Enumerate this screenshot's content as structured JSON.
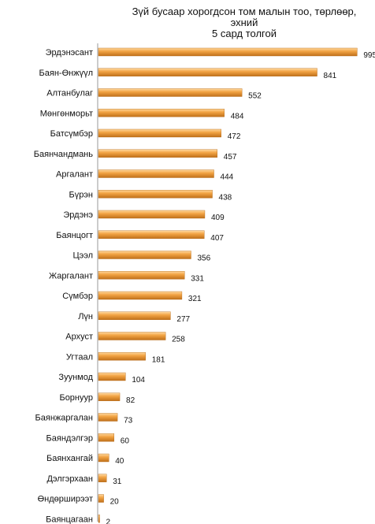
{
  "chart_data": {
    "type": "bar",
    "orientation": "horizontal",
    "title_lines": [
      "Зүй бусаар хорогдсон том малын тоо, төрлөөр, эхний",
      "5 сард толгой"
    ],
    "categories": [
      "Эрдэнэсант",
      "Баян-Өнжүүл",
      "Алтанбулаг",
      "Мөнгөнморьт",
      "Батсүмбэр",
      "Баянчандмань",
      "Аргалант",
      "Бүрэн",
      "Эрдэнэ",
      "Баянцогт",
      "Цээл",
      "Жаргалант",
      "Сүмбэр",
      "Лүн",
      "Архуст",
      "Угтаал",
      "Зуунмод",
      "Борнуур",
      "Баянжаргалан",
      "Баяндэлгэр",
      "Баянхангай",
      "Дэлгэрхаан",
      "Өндөрширээт",
      "Баянцагаан"
    ],
    "values": [
      995,
      841,
      552,
      484,
      472,
      457,
      444,
      438,
      409,
      407,
      356,
      331,
      321,
      277,
      258,
      181,
      104,
      82,
      73,
      60,
      40,
      31,
      20,
      2
    ],
    "xlim": [
      0,
      1000
    ],
    "bar_color": "#f0a23a",
    "grid": false,
    "legend": "none"
  }
}
